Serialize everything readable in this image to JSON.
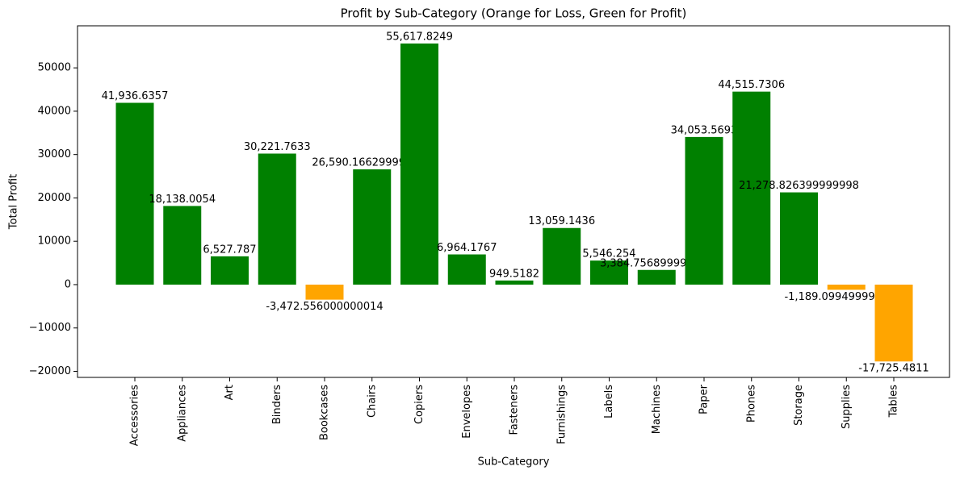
{
  "chart_data": {
    "type": "bar",
    "title": "Profit by Sub-Category (Orange for Loss, Green for Profit)",
    "x_label": "Sub-Category",
    "y_label": "Total Profit",
    "categories": [
      "Accessories",
      "Appliances",
      "Art",
      "Binders",
      "Bookcases",
      "Chairs",
      "Copiers",
      "Envelopes",
      "Fasteners",
      "Furnishings",
      "Labels",
      "Machines",
      "Paper",
      "Phones",
      "Storage",
      "Supplies",
      "Tables"
    ],
    "values": [
      41936.6357,
      18138.0054,
      6527.787,
      30221.7633,
      -3472.556000000014,
      26590.166299999997,
      55617.8249,
      6964.1767,
      949.5182,
      13059.1436,
      5546.254,
      3384.756899999999,
      34053.5693,
      44515.7306,
      21278.826399999998,
      -1189.0994999999998,
      -17725.4811
    ],
    "value_labels": [
      "41,936.6357",
      "18,138.0054",
      "6,527.787",
      "30,221.7633",
      "-3,472.556000000014",
      "26,590.166299999997",
      "55,617.8249",
      "6,964.1767",
      "949.5182",
      "13,059.1436",
      "5,546.254",
      "3,384.756899999999",
      "34,053.5693",
      "44,515.7306",
      "21,278.826399999998",
      "-1,189.0994999999998",
      "-17,725.4811"
    ],
    "colors": [
      "green",
      "green",
      "green",
      "green",
      "orange",
      "green",
      "green",
      "green",
      "green",
      "green",
      "green",
      "green",
      "green",
      "green",
      "green",
      "orange",
      "orange"
    ],
    "ylim": [
      -21400,
      59700
    ],
    "yticks": [
      {
        "value": -20000,
        "label": "−20000"
      },
      {
        "value": -10000,
        "label": "−10000"
      },
      0,
      10000,
      20000,
      30000,
      40000,
      50000
    ],
    "grid": false
  }
}
